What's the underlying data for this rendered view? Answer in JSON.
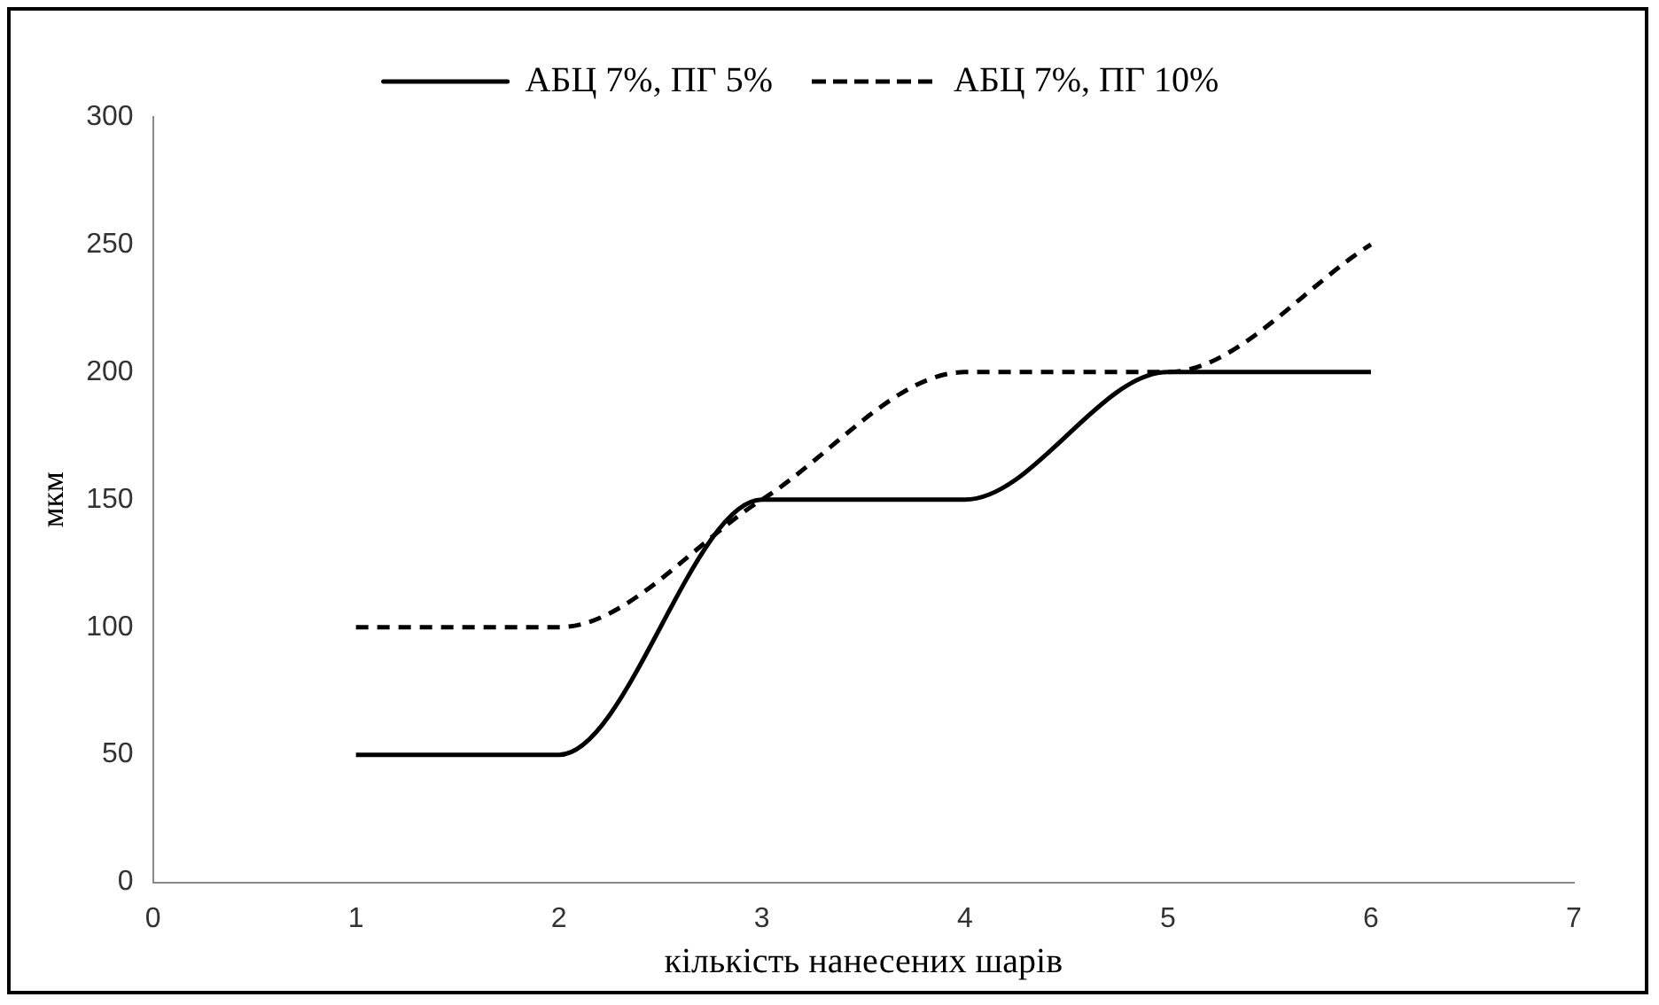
{
  "chart_data": {
    "type": "line",
    "xlabel": "кількість нанесених шарів",
    "ylabel": "мкм",
    "x": [
      1,
      2,
      3,
      4,
      5,
      6
    ],
    "series": [
      {
        "name": "АБЦ 7%, ПГ 5%",
        "color": "#000000",
        "values": [
          50,
          50,
          150,
          150,
          200,
          200
        ],
        "line_style": "solid"
      },
      {
        "name": "АБЦ 7%, ПГ 10%",
        "color": "#000000",
        "values": [
          100,
          100,
          150,
          200,
          200,
          250
        ],
        "line_style": "dashed"
      }
    ],
    "xlim": [
      0,
      7
    ],
    "xticks": [
      0,
      1,
      2,
      3,
      4,
      5,
      6,
      7
    ],
    "ylim": [
      0,
      300
    ],
    "yticks": [
      0,
      50,
      100,
      150,
      200,
      250,
      300
    ],
    "grid": false,
    "legend": "top",
    "marker": "none"
  }
}
